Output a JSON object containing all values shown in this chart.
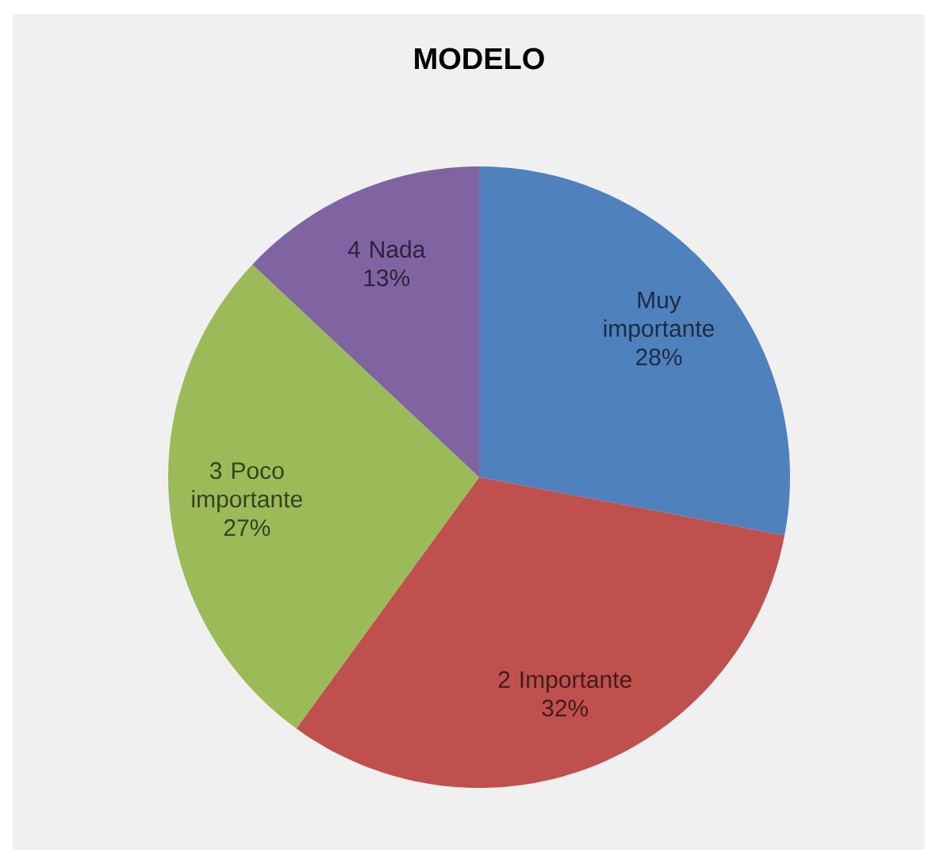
{
  "chart_data": {
    "type": "pie",
    "title": "MODELO",
    "categories": [
      "Muy importante",
      "2 Importante",
      "3 Poco importante",
      "4 Nada"
    ],
    "values": [
      28,
      32,
      27,
      13
    ],
    "colors": [
      "#4f81bd",
      "#c0504d",
      "#9bbb59",
      "#8064a2"
    ],
    "value_labels": [
      "28%",
      "32%",
      "27%",
      "13%"
    ]
  }
}
